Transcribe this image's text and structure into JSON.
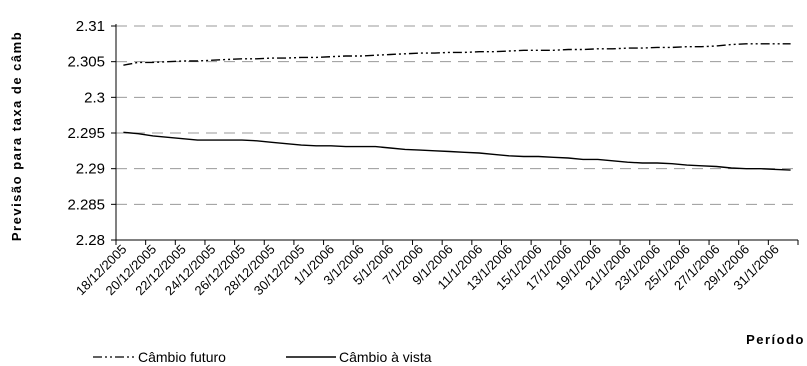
{
  "chart_data": {
    "type": "line",
    "title": "",
    "xlabel": "Período",
    "ylabel": "Previsão para taxa de câmb",
    "ylim": [
      2.28,
      2.31
    ],
    "y_ticks": [
      "2.28",
      "2.285",
      "2.29",
      "2.295",
      "2.3",
      "2.305",
      "2.31"
    ],
    "grid": "horizontal dashed",
    "legend_position": "bottom-left",
    "x_tick_labels": [
      "18/12/2005",
      "20/12/2005",
      "22/12/2005",
      "24/12/2005",
      "26/12/2005",
      "28/12/2005",
      "30/12/2005",
      "1/1/2006",
      "3/1/2006",
      "5/1/2006",
      "7/1/2006",
      "9/1/2006",
      "11/1/2006",
      "13/1/2006",
      "15/1/2006",
      "17/1/2006",
      "19/1/2006",
      "21/1/2006",
      "23/1/2006",
      "25/1/2006",
      "27/1/2006",
      "29/1/2006",
      "31/1/2006"
    ],
    "x": [
      "18/12/2005",
      "19/12/2005",
      "20/12/2005",
      "21/12/2005",
      "22/12/2005",
      "23/12/2005",
      "24/12/2005",
      "25/12/2005",
      "26/12/2005",
      "27/12/2005",
      "28/12/2005",
      "29/12/2005",
      "30/12/2005",
      "31/12/2005",
      "1/1/2006",
      "2/1/2006",
      "3/1/2006",
      "4/1/2006",
      "5/1/2006",
      "6/1/2006",
      "7/1/2006",
      "8/1/2006",
      "9/1/2006",
      "10/1/2006",
      "11/1/2006",
      "12/1/2006",
      "13/1/2006",
      "14/1/2006",
      "15/1/2006",
      "16/1/2006",
      "17/1/2006",
      "18/1/2006",
      "19/1/2006",
      "20/1/2006",
      "21/1/2006",
      "22/1/2006",
      "23/1/2006",
      "24/1/2006",
      "25/1/2006",
      "26/1/2006",
      "27/1/2006",
      "28/1/2006",
      "29/1/2006",
      "30/1/2006",
      "31/1/2006",
      "1/2/2006"
    ],
    "series": [
      {
        "name": "Câmbio futuro",
        "style": "dash-dot-dot",
        "color": "#000000",
        "values": [
          2.3045,
          2.3049,
          2.3049,
          2.305,
          2.3051,
          2.3051,
          2.3052,
          2.3053,
          2.3054,
          2.3054,
          2.3055,
          2.3055,
          2.3056,
          2.3056,
          2.3057,
          2.3058,
          2.3058,
          2.3059,
          2.306,
          2.3061,
          2.3062,
          2.3062,
          2.3063,
          2.3063,
          2.3064,
          2.3064,
          2.3065,
          2.3066,
          2.3066,
          2.3066,
          2.3067,
          2.3067,
          2.3068,
          2.3068,
          2.3069,
          2.3069,
          2.307,
          2.307,
          2.3071,
          2.3071,
          2.3072,
          2.3074,
          2.3075,
          2.3075,
          2.3075,
          2.3075
        ]
      },
      {
        "name": "Câmbio à vista",
        "style": "solid",
        "color": "#000000",
        "values": [
          2.2951,
          2.2949,
          2.2946,
          2.2944,
          2.2942,
          2.294,
          2.294,
          2.294,
          2.294,
          2.2939,
          2.2937,
          2.2935,
          2.2933,
          2.2932,
          2.2932,
          2.2931,
          2.2931,
          2.2931,
          2.2929,
          2.2927,
          2.2926,
          2.2925,
          2.2924,
          2.2923,
          2.2922,
          2.292,
          2.2918,
          2.2917,
          2.2917,
          2.2916,
          2.2915,
          2.2913,
          2.2913,
          2.2911,
          2.2909,
          2.2908,
          2.2908,
          2.2907,
          2.2905,
          2.2904,
          2.2903,
          2.2901,
          2.29,
          2.29,
          2.2899,
          2.2898
        ]
      }
    ]
  }
}
